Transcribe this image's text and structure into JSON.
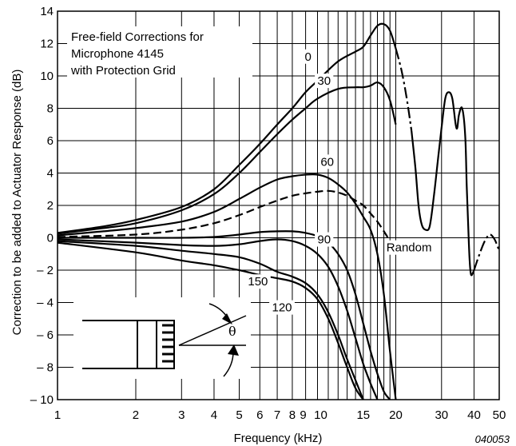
{
  "chart_data": {
    "type": "line",
    "title": "",
    "xlabel": "Frequency (kHz)",
    "ylabel": "Correction to be added to Actuator Response (dB)",
    "x_scale": "log",
    "xlim": [
      1,
      50
    ],
    "ylim": [
      -10,
      14
    ],
    "grid": true,
    "legend": "none",
    "x_ticks": [
      {
        "value": 1,
        "label": "1"
      },
      {
        "value": 2,
        "label": "2"
      },
      {
        "value": 3,
        "label": "3"
      },
      {
        "value": 4,
        "label": "4"
      },
      {
        "value": 5,
        "label": "5"
      },
      {
        "value": 6,
        "label": "6"
      },
      {
        "value": 7,
        "label": "7"
      },
      {
        "value": 8,
        "label": "8"
      },
      {
        "value": 9,
        "label": "9"
      },
      {
        "value": 10,
        "label": "10"
      },
      {
        "value": 15,
        "label": "15"
      },
      {
        "value": 20,
        "label": "20"
      },
      {
        "value": 30,
        "label": "30"
      },
      {
        "value": 40,
        "label": "40"
      },
      {
        "value": 50,
        "label": "50"
      }
    ],
    "x_gridlines": [
      1,
      2,
      3,
      4,
      5,
      6,
      7,
      8,
      9,
      10,
      11,
      12,
      13,
      14,
      15,
      16,
      17,
      18,
      19,
      20,
      30,
      40,
      50
    ],
    "y_ticks": [
      {
        "value": 14,
        "label": "14"
      },
      {
        "value": 12,
        "label": "12"
      },
      {
        "value": 10,
        "label": "10"
      },
      {
        "value": 8,
        "label": "8"
      },
      {
        "value": 6,
        "label": "6"
      },
      {
        "value": 4,
        "label": "4"
      },
      {
        "value": 2,
        "label": "2"
      },
      {
        "value": 0,
        "label": "0"
      },
      {
        "value": -2,
        "label": "– 2"
      },
      {
        "value": -4,
        "label": "– 4"
      },
      {
        "value": -6,
        "label": "– 6"
      },
      {
        "value": -8,
        "label": "– 8"
      },
      {
        "value": -10,
        "label": "– 10"
      }
    ],
    "annotation_lines": [
      "Free-field Corrections for",
      "Microphone 4145",
      "with Protection Grid"
    ],
    "figure_id": "040053",
    "angle_symbol": "θ",
    "series": [
      {
        "name": "0",
        "style": "solid",
        "points": [
          [
            1,
            0.3
          ],
          [
            1.5,
            0.7
          ],
          [
            2,
            1.1
          ],
          [
            3,
            1.9
          ],
          [
            4,
            3.0
          ],
          [
            5,
            4.5
          ],
          [
            6,
            5.8
          ],
          [
            7,
            7.0
          ],
          [
            8,
            8.0
          ],
          [
            9,
            9.0
          ],
          [
            10,
            9.7
          ],
          [
            12,
            10.9
          ],
          [
            14,
            11.5
          ],
          [
            15,
            11.8
          ],
          [
            16,
            12.5
          ],
          [
            17,
            13.1
          ],
          [
            18,
            13.2
          ],
          [
            19,
            12.8
          ],
          [
            20,
            11.7
          ]
        ]
      },
      {
        "name": "0",
        "style": "dashdot",
        "points": [
          [
            20,
            11.7
          ],
          [
            21,
            10.4
          ],
          [
            22,
            8.7
          ],
          [
            23,
            6.6
          ]
        ]
      },
      {
        "name": "0",
        "style": "solid",
        "points": [
          [
            23,
            6.6
          ],
          [
            23.8,
            4.3
          ],
          [
            24.5,
            1.9
          ],
          [
            25.2,
            0.8
          ],
          [
            26,
            0.5
          ],
          [
            27,
            0.7
          ],
          [
            28,
            2.5
          ],
          [
            29,
            4.7
          ],
          [
            30,
            6.8
          ],
          [
            31,
            8.6
          ],
          [
            32,
            9.0
          ],
          [
            33,
            8.6
          ],
          [
            34,
            7.0
          ],
          [
            34.5,
            6.8
          ],
          [
            35,
            7.6
          ],
          [
            36,
            8.0
          ],
          [
            37,
            6.3
          ],
          [
            37.5,
            3.2
          ],
          [
            38,
            0.7
          ],
          [
            38.5,
            -1.5
          ],
          [
            39,
            -2.3
          ],
          [
            40,
            -2.0
          ]
        ]
      },
      {
        "name": "0",
        "style": "dashdot",
        "points": [
          [
            40,
            -2.0
          ],
          [
            42,
            -1.0
          ],
          [
            44,
            -0.2
          ],
          [
            46,
            0.2
          ],
          [
            48,
            -0.1
          ],
          [
            50,
            -0.8
          ]
        ]
      },
      {
        "name": "30",
        "style": "solid",
        "points": [
          [
            1,
            0.25
          ],
          [
            1.5,
            0.6
          ],
          [
            2,
            0.9
          ],
          [
            3,
            1.7
          ],
          [
            4,
            2.7
          ],
          [
            5,
            4.0
          ],
          [
            6,
            5.3
          ],
          [
            7,
            6.4
          ],
          [
            8,
            7.3
          ],
          [
            9,
            8.0
          ],
          [
            10,
            8.6
          ],
          [
            12,
            9.2
          ],
          [
            14,
            9.3
          ],
          [
            15,
            9.3
          ],
          [
            16,
            9.4
          ],
          [
            17,
            9.6
          ],
          [
            18,
            9.3
          ],
          [
            19,
            8.5
          ],
          [
            20,
            7.0
          ]
        ]
      },
      {
        "name": "60",
        "style": "solid",
        "points": [
          [
            1,
            0.15
          ],
          [
            1.5,
            0.4
          ],
          [
            2,
            0.6
          ],
          [
            3,
            1.0
          ],
          [
            4,
            1.6
          ],
          [
            5,
            2.4
          ],
          [
            6,
            3.1
          ],
          [
            7,
            3.6
          ],
          [
            8,
            3.8
          ],
          [
            9,
            3.9
          ],
          [
            10,
            3.9
          ],
          [
            11,
            3.7
          ],
          [
            12,
            3.3
          ],
          [
            13,
            2.8
          ],
          [
            14,
            2.1
          ],
          [
            15,
            1.3
          ],
          [
            16,
            0.5
          ],
          [
            17,
            -1.0
          ],
          [
            18,
            -3.5
          ],
          [
            19,
            -7.0
          ],
          [
            20,
            -10.0
          ]
        ]
      },
      {
        "name": "Random",
        "style": "dashed",
        "points": [
          [
            1,
            0.05
          ],
          [
            2,
            0.2
          ],
          [
            3,
            0.5
          ],
          [
            4,
            0.9
          ],
          [
            5,
            1.4
          ],
          [
            6,
            1.9
          ],
          [
            7,
            2.3
          ],
          [
            8,
            2.6
          ],
          [
            9,
            2.75
          ],
          [
            10,
            2.85
          ],
          [
            11,
            2.9
          ],
          [
            12,
            2.8
          ],
          [
            13,
            2.6
          ],
          [
            14,
            2.3
          ],
          [
            15,
            2.0
          ],
          [
            16,
            1.5
          ],
          [
            17,
            1.0
          ],
          [
            18,
            0.4
          ],
          [
            19,
            -0.2
          ],
          [
            20,
            -0.8
          ]
        ]
      },
      {
        "name": "90",
        "style": "solid",
        "points": [
          [
            1,
            0
          ],
          [
            2,
            0
          ],
          [
            3,
            0
          ],
          [
            4,
            0.05
          ],
          [
            5,
            0.2
          ],
          [
            6,
            0.35
          ],
          [
            7,
            0.4
          ],
          [
            8,
            0.4
          ],
          [
            9,
            0.3
          ],
          [
            10,
            0.1
          ],
          [
            11,
            -0.3
          ],
          [
            12,
            -1.0
          ],
          [
            13,
            -2.0
          ],
          [
            14,
            -3.5
          ],
          [
            15,
            -5.3
          ],
          [
            16,
            -7.0
          ],
          [
            17,
            -8.4
          ],
          [
            18,
            -9.5
          ],
          [
            19,
            -10.0
          ]
        ]
      },
      {
        "name": "",
        "style": "solid",
        "points": [
          [
            1,
            -0.1
          ],
          [
            2,
            -0.3
          ],
          [
            3,
            -0.45
          ],
          [
            4,
            -0.5
          ],
          [
            5,
            -0.4
          ],
          [
            6,
            -0.2
          ],
          [
            7,
            -0.1
          ],
          [
            8,
            -0.2
          ],
          [
            9,
            -0.5
          ],
          [
            10,
            -1.0
          ],
          [
            11,
            -1.8
          ],
          [
            12,
            -3.0
          ],
          [
            13,
            -4.5
          ],
          [
            14,
            -6.2
          ],
          [
            15,
            -7.8
          ],
          [
            16,
            -9.0
          ],
          [
            17,
            -10.0
          ]
        ]
      },
      {
        "name": "150",
        "style": "solid",
        "points": [
          [
            1,
            -0.2
          ],
          [
            2,
            -0.5
          ],
          [
            3,
            -0.8
          ],
          [
            4,
            -1.0
          ],
          [
            5,
            -1.2
          ],
          [
            6,
            -1.6
          ],
          [
            7,
            -2.1
          ],
          [
            8,
            -2.4
          ],
          [
            9,
            -2.8
          ],
          [
            10,
            -3.5
          ],
          [
            11,
            -4.6
          ],
          [
            12,
            -6.0
          ],
          [
            13,
            -7.5
          ],
          [
            14,
            -8.8
          ],
          [
            15,
            -10.0
          ]
        ]
      },
      {
        "name": "120",
        "style": "solid",
        "points": [
          [
            1,
            -0.3
          ],
          [
            2,
            -0.9
          ],
          [
            3,
            -1.4
          ],
          [
            4,
            -1.7
          ],
          [
            5,
            -2.0
          ],
          [
            6,
            -2.3
          ],
          [
            7,
            -2.5
          ],
          [
            8,
            -2.7
          ],
          [
            9,
            -3.1
          ],
          [
            10,
            -3.8
          ],
          [
            11,
            -5.0
          ],
          [
            12,
            -6.5
          ],
          [
            13,
            -8.0
          ],
          [
            14,
            -9.3
          ],
          [
            15,
            -10.0
          ]
        ]
      }
    ],
    "curve_labels": [
      {
        "text": "0",
        "x": 9.2,
        "y": 11.0
      },
      {
        "text": "30",
        "x": 10.6,
        "y": 9.5
      },
      {
        "text": "60",
        "x": 10.9,
        "y": 4.5
      },
      {
        "text": "90",
        "x": 10.6,
        "y": -0.3
      },
      {
        "text": "Random",
        "x": 22.5,
        "y": -0.8
      },
      {
        "text": "150",
        "x": 5.9,
        "y": -2.9
      },
      {
        "text": "120",
        "x": 7.3,
        "y": -4.5
      }
    ]
  }
}
